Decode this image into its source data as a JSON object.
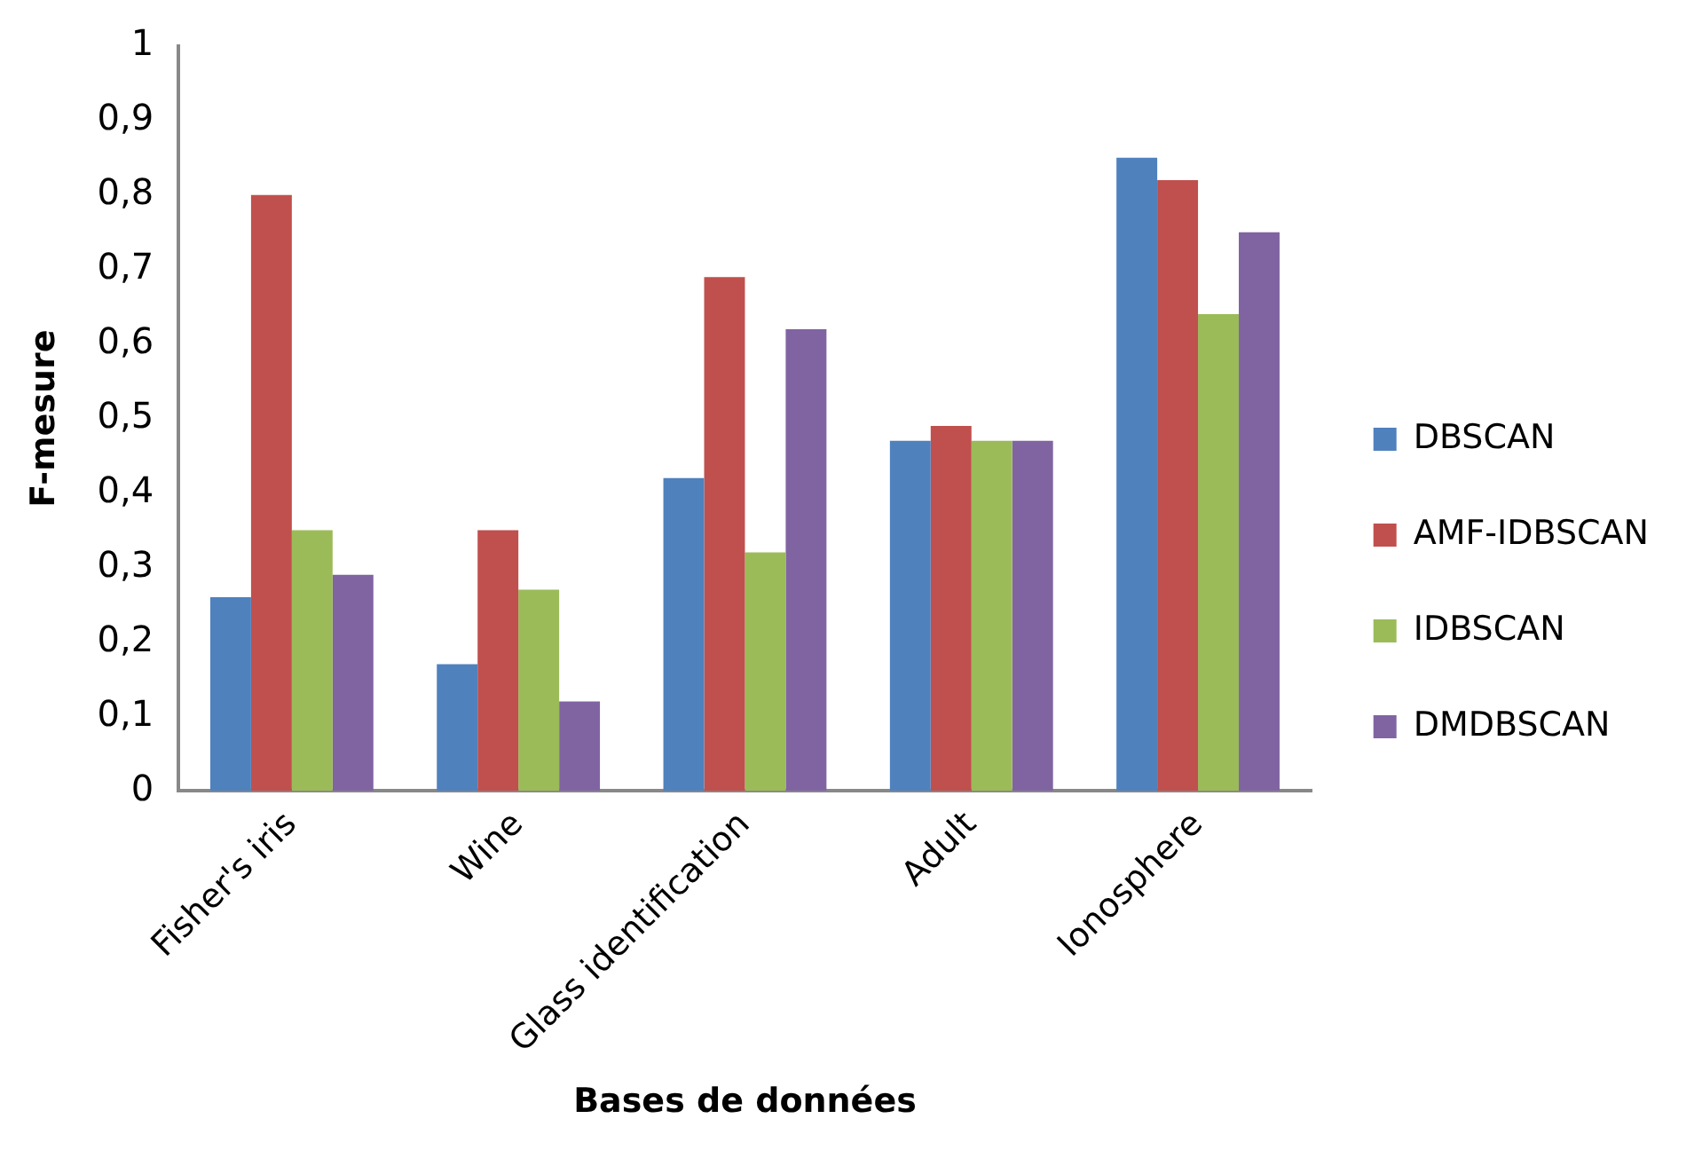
{
  "chart_data": {
    "type": "bar",
    "xlabel": "Bases de données",
    "ylabel": "F-mesure",
    "categories": [
      "Fisher's iris",
      "Wine",
      "Glass identification",
      "Adult",
      "Ionosphere"
    ],
    "series": [
      {
        "name": "DBSCAN",
        "color": "#4f81bd",
        "values": [
          0.26,
          0.17,
          0.42,
          0.47,
          0.85
        ]
      },
      {
        "name": "AMF-IDBSCAN",
        "color": "#c0504d",
        "values": [
          0.8,
          0.35,
          0.69,
          0.49,
          0.82
        ]
      },
      {
        "name": "IDBSCAN",
        "color": "#9bbb59",
        "values": [
          0.35,
          0.27,
          0.32,
          0.47,
          0.64
        ]
      },
      {
        "name": "DMDBSCAN",
        "color": "#8064a2",
        "values": [
          0.29,
          0.12,
          0.62,
          0.47,
          0.75
        ]
      }
    ],
    "ylim": [
      0,
      1
    ],
    "yticks": [
      0,
      {
        "value": 0.1,
        "label": "0,1"
      },
      {
        "value": 0.2,
        "label": "0,2"
      },
      {
        "value": 0.3,
        "label": "0,3"
      },
      {
        "value": 0.4,
        "label": "0,4"
      },
      {
        "value": 0.5,
        "label": "0,5"
      },
      {
        "value": 0.6,
        "label": "0,6"
      },
      {
        "value": 0.7,
        "label": "0,7"
      },
      {
        "value": 0.8,
        "label": "0,8"
      },
      {
        "value": 0.9,
        "label": "0,9"
      },
      1
    ],
    "grid": false,
    "legend": "right"
  }
}
